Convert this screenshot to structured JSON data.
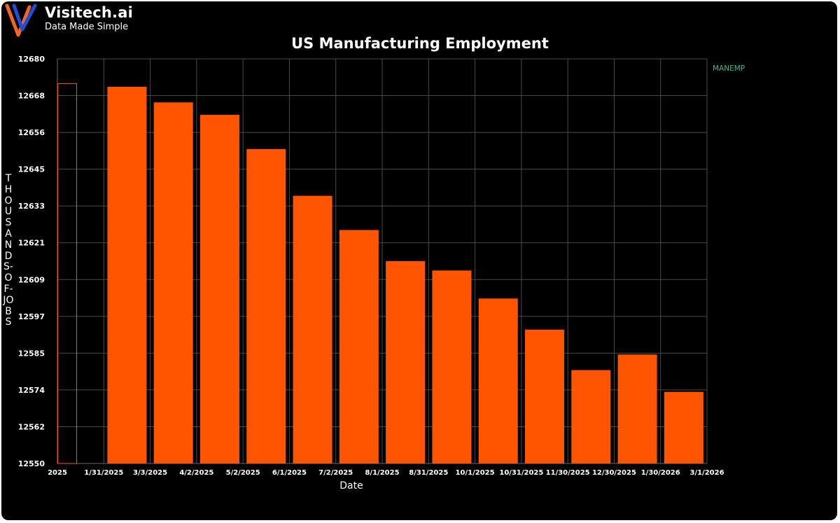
{
  "brand": {
    "name": "Visitech.ai",
    "tagline": "Data Made Simple",
    "colors": {
      "orange": "#f26522",
      "blue": "#1f4fd8"
    }
  },
  "chart_data": {
    "type": "bar",
    "title": "US Manufacturing Employment",
    "xlabel": "Date",
    "ylabel": "THOUSANDS-OF-JOBS",
    "legend": {
      "entries": [
        "MANEMP"
      ],
      "position": "top-right",
      "color": "#3dbb8a"
    },
    "bar_color": "#ff5500",
    "ylim": [
      12550,
      12680
    ],
    "yticks": [
      "12550",
      "12562",
      "12574",
      "12585",
      "12597",
      "12609",
      "12621",
      "12633",
      "12645",
      "12656",
      "12668",
      "12680"
    ],
    "xticks": [
      "2025",
      "1/31/2025",
      "3/3/2025",
      "4/2/2025",
      "5/2/2025",
      "6/1/2025",
      "7/2/2025",
      "8/1/2025",
      "8/31/2025",
      "10/1/2025",
      "10/31/2025",
      "11/30/2025",
      "12/30/2025",
      "1/30/2026",
      "3/1/2026"
    ],
    "series": [
      {
        "name": "MANEMP",
        "points": [
          {
            "date": "1/1/2025",
            "value": 12672,
            "outline_only": true
          },
          {
            "date": "2/1/2025",
            "value": 12671
          },
          {
            "date": "3/1/2025",
            "value": 12666
          },
          {
            "date": "4/1/2025",
            "value": 12662
          },
          {
            "date": "5/1/2025",
            "value": 12651
          },
          {
            "date": "6/1/2025",
            "value": 12636
          },
          {
            "date": "7/1/2025",
            "value": 12625
          },
          {
            "date": "8/1/2025",
            "value": 12615
          },
          {
            "date": "9/1/2025",
            "value": 12612
          },
          {
            "date": "10/1/2025",
            "value": 12603
          },
          {
            "date": "11/1/2025",
            "value": 12593
          },
          {
            "date": "12/1/2025",
            "value": 12580
          },
          {
            "date": "1/1/2026",
            "value": 12585
          },
          {
            "date": "2/1/2026",
            "value": 12573
          }
        ]
      }
    ]
  }
}
